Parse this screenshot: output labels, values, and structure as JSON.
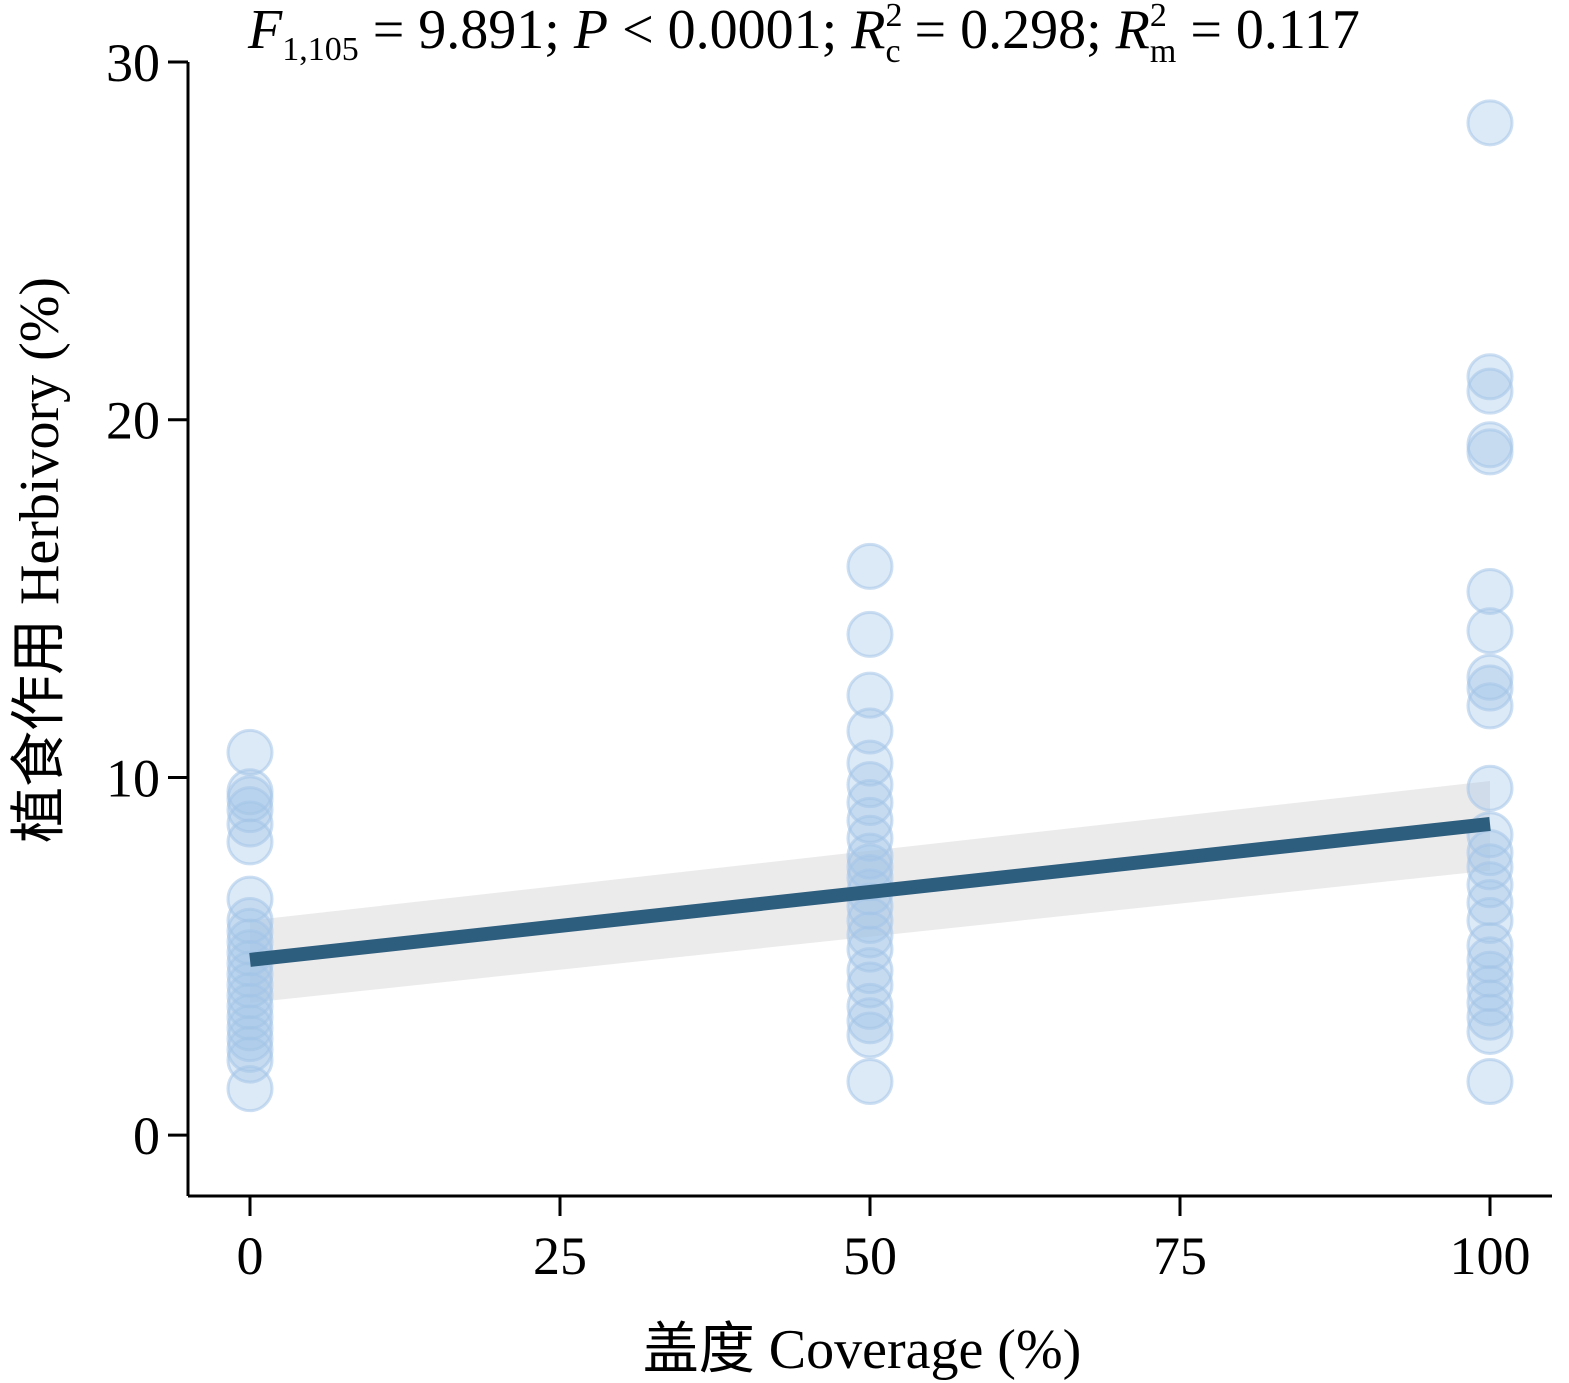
{
  "chart_data": {
    "type": "scatter",
    "title": "",
    "annotation": {
      "f_label": "F",
      "f_df": "1,105",
      "f_rest": " = 9.891; ",
      "p_label": "P",
      "p_rest": " < 0.0001; ",
      "rc_label": "R",
      "rc_sup": "2",
      "rc_sub": "c",
      "rc_rest": " = 0.298; ",
      "rm_label": "R",
      "rm_sup": "2",
      "rm_sub": "m",
      "rm_rest": " = 0.117"
    },
    "xlabel": "盖度 Coverage (%)",
    "ylabel": "植食作用 Herbivory (%)",
    "xlim": [
      -5,
      105
    ],
    "ylim": [
      -1.7,
      30
    ],
    "x_ticks": [
      0,
      25,
      50,
      75,
      100
    ],
    "x_tick_labels": [
      "0",
      "25",
      "50",
      "75",
      "100"
    ],
    "y_ticks": [
      0,
      10,
      20,
      30
    ],
    "y_tick_labels": [
      "0",
      "10",
      "20",
      "30"
    ],
    "grid": false,
    "series": [
      {
        "marker_color": "#a4c4e8",
        "points": [
          {
            "x": 0,
            "y": 10.7
          },
          {
            "x": 0,
            "y": 9.6
          },
          {
            "x": 0,
            "y": 9.4
          },
          {
            "x": 0,
            "y": 9.1
          },
          {
            "x": 0,
            "y": 8.7
          },
          {
            "x": 0,
            "y": 8.2
          },
          {
            "x": 0,
            "y": 6.6
          },
          {
            "x": 0,
            "y": 6.0
          },
          {
            "x": 0,
            "y": 5.7
          },
          {
            "x": 0,
            "y": 5.4
          },
          {
            "x": 0,
            "y": 5.1
          },
          {
            "x": 0,
            "y": 4.8
          },
          {
            "x": 0,
            "y": 4.5
          },
          {
            "x": 0,
            "y": 4.2
          },
          {
            "x": 0,
            "y": 3.9
          },
          {
            "x": 0,
            "y": 3.6
          },
          {
            "x": 0,
            "y": 3.3
          },
          {
            "x": 0,
            "y": 3.0
          },
          {
            "x": 0,
            "y": 2.7
          },
          {
            "x": 0,
            "y": 2.4
          },
          {
            "x": 0,
            "y": 2.1
          },
          {
            "x": 0,
            "y": 1.3
          },
          {
            "x": 50,
            "y": 15.9
          },
          {
            "x": 50,
            "y": 14.0
          },
          {
            "x": 50,
            "y": 12.3
          },
          {
            "x": 50,
            "y": 11.3
          },
          {
            "x": 50,
            "y": 10.4
          },
          {
            "x": 50,
            "y": 9.8
          },
          {
            "x": 50,
            "y": 9.3
          },
          {
            "x": 50,
            "y": 8.8
          },
          {
            "x": 50,
            "y": 8.3
          },
          {
            "x": 50,
            "y": 7.8
          },
          {
            "x": 50,
            "y": 7.5
          },
          {
            "x": 50,
            "y": 7.2
          },
          {
            "x": 50,
            "y": 6.8
          },
          {
            "x": 50,
            "y": 6.4
          },
          {
            "x": 50,
            "y": 6.0
          },
          {
            "x": 50,
            "y": 5.6
          },
          {
            "x": 50,
            "y": 5.2
          },
          {
            "x": 50,
            "y": 4.6
          },
          {
            "x": 50,
            "y": 4.2
          },
          {
            "x": 50,
            "y": 3.6
          },
          {
            "x": 50,
            "y": 3.2
          },
          {
            "x": 50,
            "y": 2.8
          },
          {
            "x": 50,
            "y": 1.5
          },
          {
            "x": 100,
            "y": 28.3
          },
          {
            "x": 100,
            "y": 21.2
          },
          {
            "x": 100,
            "y": 20.8
          },
          {
            "x": 100,
            "y": 19.3
          },
          {
            "x": 100,
            "y": 19.1
          },
          {
            "x": 100,
            "y": 15.2
          },
          {
            "x": 100,
            "y": 14.1
          },
          {
            "x": 100,
            "y": 12.8
          },
          {
            "x": 100,
            "y": 12.5
          },
          {
            "x": 100,
            "y": 12.0
          },
          {
            "x": 100,
            "y": 9.7
          },
          {
            "x": 100,
            "y": 8.4
          },
          {
            "x": 100,
            "y": 7.9
          },
          {
            "x": 100,
            "y": 7.5
          },
          {
            "x": 100,
            "y": 7.0
          },
          {
            "x": 100,
            "y": 6.5
          },
          {
            "x": 100,
            "y": 6.0
          },
          {
            "x": 100,
            "y": 5.3
          },
          {
            "x": 100,
            "y": 4.9
          },
          {
            "x": 100,
            "y": 4.5
          },
          {
            "x": 100,
            "y": 4.1
          },
          {
            "x": 100,
            "y": 3.7
          },
          {
            "x": 100,
            "y": 3.3
          },
          {
            "x": 100,
            "y": 2.9
          },
          {
            "x": 100,
            "y": 1.5
          }
        ]
      }
    ],
    "fit_line": {
      "color": "#2e5e7e",
      "x": [
        0,
        100
      ],
      "y": [
        4.9,
        8.7
      ],
      "ci_lower": [
        3.7,
        7.4
      ],
      "ci_upper": [
        6.0,
        9.9
      ],
      "ci_color": "#e6e4e6"
    }
  }
}
